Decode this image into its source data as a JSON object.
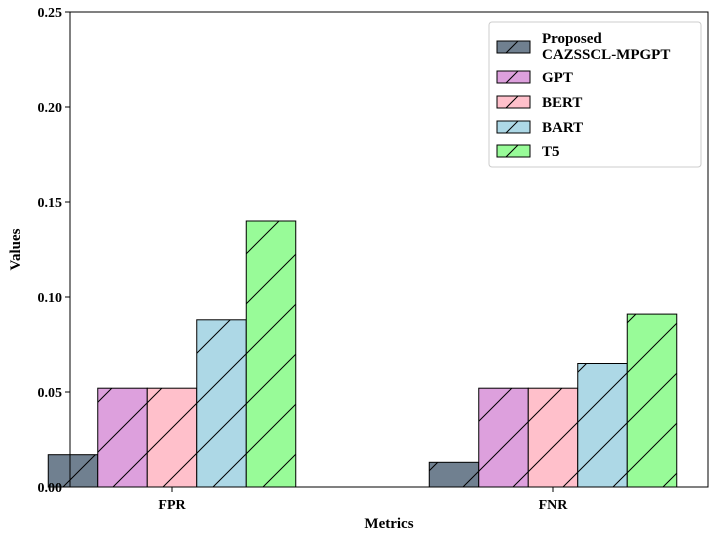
{
  "chart_data": {
    "type": "bar",
    "categories": [
      "FPR",
      "FNR"
    ],
    "series": [
      {
        "name": "Proposed\nCAZSSCL-MPGPT",
        "values": [
          0.017,
          0.013
        ],
        "color": "#708090"
      },
      {
        "name": "GPT",
        "values": [
          0.052,
          0.052
        ],
        "color": "#dda0dd"
      },
      {
        "name": "BERT",
        "values": [
          0.052,
          0.052
        ],
        "color": "#ffc0cb"
      },
      {
        "name": "BART",
        "values": [
          0.088,
          0.065
        ],
        "color": "#add8e6"
      },
      {
        "name": "T5",
        "values": [
          0.14,
          0.091
        ],
        "color": "#98fb98"
      }
    ],
    "xlabel": "Metrics",
    "ylabel": "Values",
    "ylim": [
      0,
      0.25
    ],
    "yticks": [
      "0.00",
      "0.05",
      "0.10",
      "0.15",
      "0.20",
      "0.25"
    ],
    "hatch": "/",
    "grid": false,
    "legend_position": "top-right"
  }
}
